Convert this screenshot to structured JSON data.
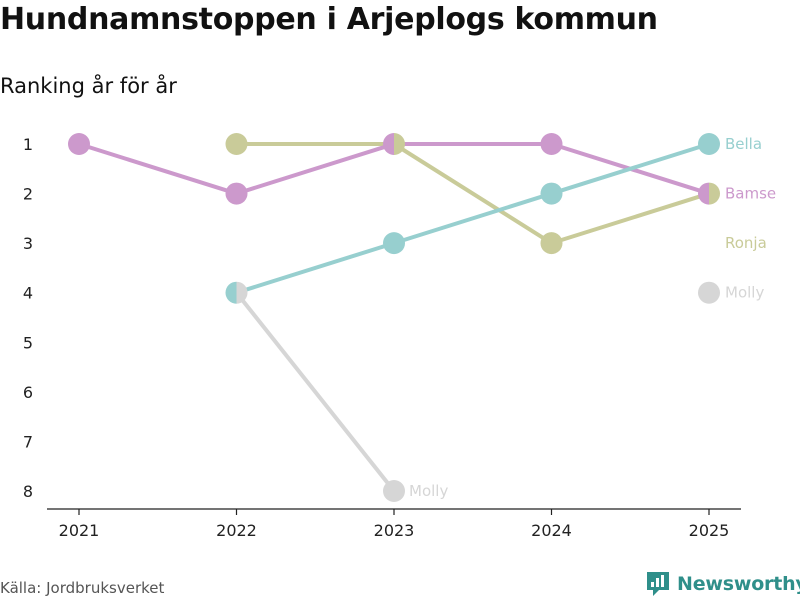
{
  "title": "Hundnamnstoppen i Arjeplogs kommun",
  "subtitle": "Ranking år för år",
  "source": "Källa: Jordbruksverket",
  "brand": {
    "name": "Newsworthy",
    "icon": "newsworthy-logo-icon",
    "color": "#2f8f8a"
  },
  "chart_data": {
    "type": "line",
    "x": [
      2021,
      2022,
      2023,
      2024,
      2025
    ],
    "x_tick_labels": [
      "2021",
      "2022",
      "2023",
      "2024",
      "2025"
    ],
    "y_tick_labels": [
      "1",
      "2",
      "3",
      "4",
      "5",
      "6",
      "7",
      "8"
    ],
    "ylim": [
      1,
      8
    ],
    "y_inverted": true,
    "grid": false,
    "series": [
      {
        "name": "Bella",
        "color": "#97cfcf",
        "values": [
          null,
          4,
          3,
          2,
          1
        ]
      },
      {
        "name": "Bamse",
        "color": "#cc99cc",
        "values": [
          1,
          2,
          1,
          1,
          2
        ]
      },
      {
        "name": "Ronja",
        "color": "#c9cb99",
        "values": [
          null,
          1,
          1,
          3,
          2
        ]
      },
      {
        "name": "Molly",
        "color": "#d6d6d6",
        "values": [
          null,
          4,
          8,
          null,
          null
        ]
      }
    ],
    "end_labels": [
      {
        "name": "Bella",
        "text": "Bella",
        "rank": 1
      },
      {
        "name": "Bamse",
        "text": "Bamse",
        "rank": 2
      },
      {
        "name": "Ronja",
        "text": "Ronja",
        "rank": 3
      },
      {
        "name": "Molly",
        "text": "Molly",
        "rank": 4
      }
    ],
    "extra_labels": [
      {
        "name": "Molly",
        "text": "Molly",
        "x": 2023,
        "rank": 8
      }
    ],
    "unranked_markers": [
      {
        "name": "Molly",
        "x": 2025,
        "rank": 4
      }
    ]
  }
}
